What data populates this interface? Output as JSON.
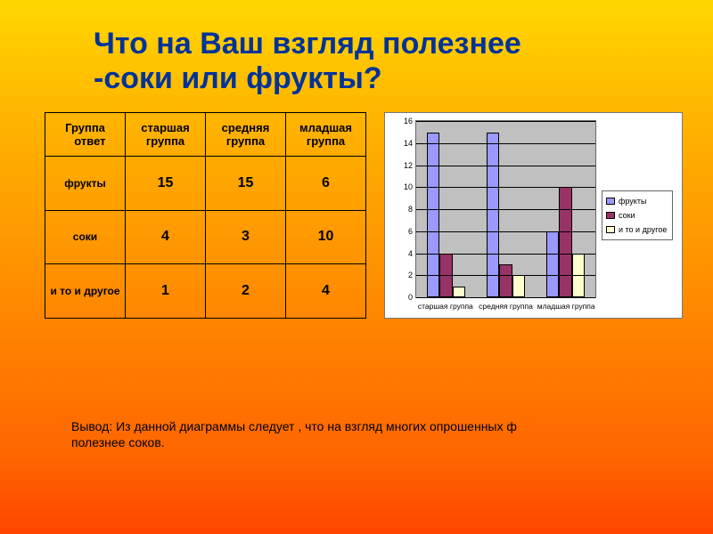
{
  "title": "Что на Ваш взгляд полезнее -соки или фрукты?",
  "table": {
    "corner_l1": "Группа",
    "corner_l2": "ответ",
    "cols": [
      "старшая группа",
      "средняя группа",
      "младшая группа"
    ],
    "rows": [
      {
        "label": "фрукты",
        "vals": [
          "15",
          "15",
          "6"
        ]
      },
      {
        "label": "соки",
        "vals": [
          "4",
          "3",
          "10"
        ]
      },
      {
        "label": "и то и другое",
        "vals": [
          "1",
          "2",
          "4"
        ]
      }
    ]
  },
  "chart": {
    "type": "bar",
    "ymax": 16,
    "ytick_step": 2,
    "plot_bg": "#c0c0c0",
    "grid_color": "#000000",
    "categories": [
      "старшая группа",
      "средняя группа",
      "младшая группа"
    ],
    "series": [
      {
        "name": "фрукты",
        "color": "#9999ff",
        "values": [
          15,
          15,
          6
        ]
      },
      {
        "name": "соки",
        "color": "#993366",
        "values": [
          4,
          3,
          10
        ]
      },
      {
        "name": "и то и другое",
        "color": "#ffffcc",
        "values": [
          1,
          2,
          4
        ]
      }
    ]
  },
  "conclusion": "Вывод: Из данной диаграммы следует , что на взгляд многих опрошенных ф\nполезнее соков."
}
